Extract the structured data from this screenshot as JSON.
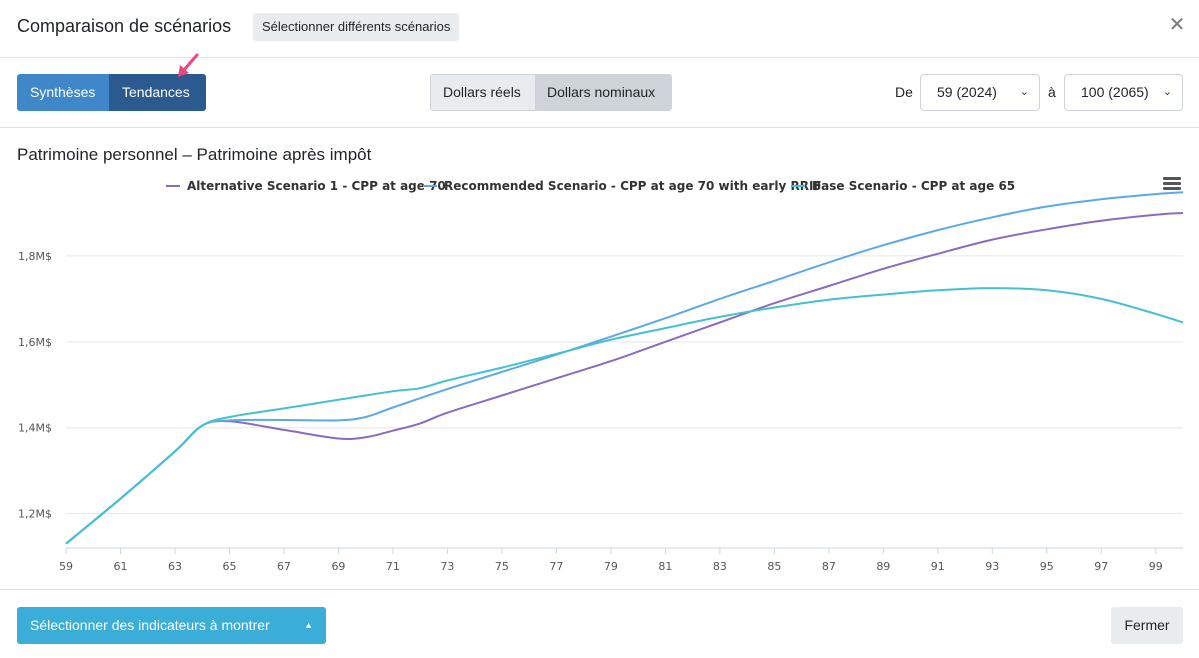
{
  "header": {
    "title": "Comparaison de scénarios",
    "select_scenarios_label": "Sélectionner différents scénarios",
    "close_glyph": "✕"
  },
  "toolbar": {
    "view_tabs": [
      "Synthèses",
      "Tendances"
    ],
    "active_view": "Tendances",
    "dollar_tabs": [
      "Dollars réels",
      "Dollars nominaux"
    ],
    "active_dollar": "Dollars nominaux",
    "from_label": "De",
    "from_value": "59 (2024)",
    "to_label": "à",
    "to_value": "100 (2065)"
  },
  "chart_data": {
    "type": "line",
    "title": "Patrimoine personnel – Patrimoine après impôt",
    "x_ticks": [
      "59",
      "61",
      "63",
      "65",
      "67",
      "69",
      "71",
      "73",
      "75",
      "77",
      "79",
      "81",
      "83",
      "85",
      "87",
      "89",
      "91",
      "93",
      "95",
      "97",
      "99"
    ],
    "y_ticks": [
      "1,2M$",
      "1,4M$",
      "1,6M$",
      "1,8M$"
    ],
    "xlim": [
      59,
      100
    ],
    "ylim": [
      1.12,
      2.0
    ],
    "y_unit": "M$",
    "grid": true,
    "legend_position": "top",
    "series": [
      {
        "name": "Alternative Scenario 1 - CPP at age 70",
        "color": "#8a6bbf",
        "points": [
          [
            59,
            1.13
          ],
          [
            61,
            1.235
          ],
          [
            63,
            1.345
          ],
          [
            64,
            1.405
          ],
          [
            65,
            1.415
          ],
          [
            67,
            1.395
          ],
          [
            69,
            1.375
          ],
          [
            70,
            1.378
          ],
          [
            71,
            1.393
          ],
          [
            72,
            1.41
          ],
          [
            73,
            1.435
          ],
          [
            75,
            1.475
          ],
          [
            77,
            1.515
          ],
          [
            79,
            1.555
          ],
          [
            81,
            1.6
          ],
          [
            83,
            1.645
          ],
          [
            85,
            1.69
          ],
          [
            87,
            1.73
          ],
          [
            89,
            1.77
          ],
          [
            91,
            1.805
          ],
          [
            93,
            1.838
          ],
          [
            95,
            1.862
          ],
          [
            97,
            1.882
          ],
          [
            99,
            1.896
          ],
          [
            100,
            1.9
          ]
        ]
      },
      {
        "name": "Recommended Scenario - CPP at age 70 with early RRIF",
        "color": "#5ea8e8",
        "points": [
          [
            59,
            1.13
          ],
          [
            61,
            1.235
          ],
          [
            63,
            1.345
          ],
          [
            64,
            1.405
          ],
          [
            65,
            1.417
          ],
          [
            67,
            1.418
          ],
          [
            69,
            1.417
          ],
          [
            70,
            1.425
          ],
          [
            71,
            1.447
          ],
          [
            73,
            1.49
          ],
          [
            75,
            1.53
          ],
          [
            77,
            1.57
          ],
          [
            79,
            1.612
          ],
          [
            81,
            1.655
          ],
          [
            83,
            1.7
          ],
          [
            85,
            1.742
          ],
          [
            87,
            1.785
          ],
          [
            89,
            1.825
          ],
          [
            91,
            1.86
          ],
          [
            93,
            1.89
          ],
          [
            95,
            1.915
          ],
          [
            97,
            1.932
          ],
          [
            99,
            1.944
          ],
          [
            100,
            1.948
          ]
        ]
      },
      {
        "name": "Base Scenario - CPP at age 65",
        "color": "#44c1d0",
        "points": [
          [
            59,
            1.13
          ],
          [
            61,
            1.235
          ],
          [
            63,
            1.345
          ],
          [
            64,
            1.405
          ],
          [
            65,
            1.425
          ],
          [
            67,
            1.445
          ],
          [
            69,
            1.465
          ],
          [
            71,
            1.485
          ],
          [
            72,
            1.492
          ],
          [
            73,
            1.51
          ],
          [
            75,
            1.54
          ],
          [
            77,
            1.572
          ],
          [
            79,
            1.605
          ],
          [
            81,
            1.632
          ],
          [
            83,
            1.658
          ],
          [
            85,
            1.68
          ],
          [
            87,
            1.698
          ],
          [
            89,
            1.71
          ],
          [
            91,
            1.72
          ],
          [
            93,
            1.725
          ],
          [
            95,
            1.72
          ],
          [
            97,
            1.7
          ],
          [
            99,
            1.665
          ],
          [
            100,
            1.645
          ]
        ]
      }
    ]
  },
  "footer": {
    "indicators_label": "Sélectionner des indicateurs à montrer",
    "close_label": "Fermer"
  }
}
